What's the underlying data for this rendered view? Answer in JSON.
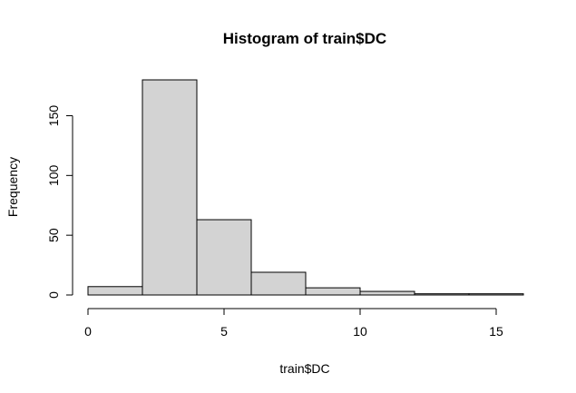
{
  "chart_data": {
    "type": "bar",
    "title": "Histogram of train$DC",
    "xlabel": "train$DC",
    "ylabel": "Frequency",
    "bins": [
      {
        "x0": 0,
        "x1": 2,
        "count": 7
      },
      {
        "x0": 2,
        "x1": 4,
        "count": 180
      },
      {
        "x0": 4,
        "x1": 6,
        "count": 63
      },
      {
        "x0": 6,
        "x1": 8,
        "count": 19
      },
      {
        "x0": 8,
        "x1": 10,
        "count": 6
      },
      {
        "x0": 10,
        "x1": 12,
        "count": 3
      },
      {
        "x0": 12,
        "x1": 14,
        "count": 1
      },
      {
        "x0": 14,
        "x1": 16,
        "count": 1
      }
    ],
    "xlim": [
      0,
      16
    ],
    "ylim": [
      0,
      180
    ],
    "xticks": [
      0,
      5,
      10,
      15
    ],
    "yticks": [
      0,
      50,
      100,
      150
    ],
    "bar_color": "#d3d3d3",
    "grid": false
  }
}
